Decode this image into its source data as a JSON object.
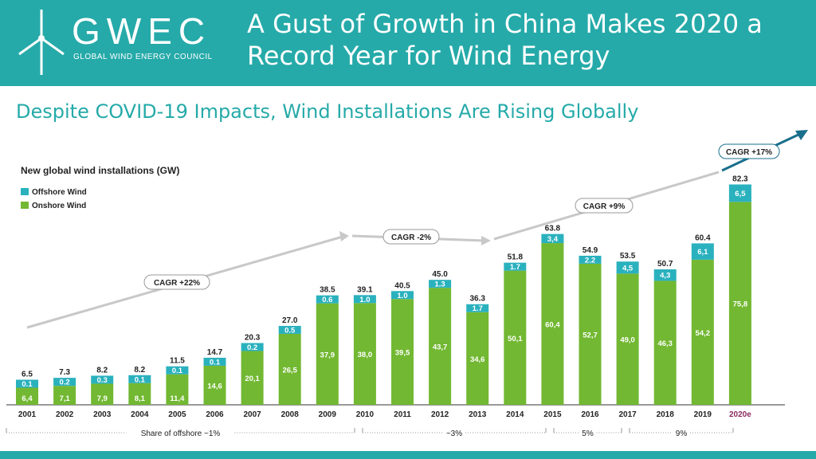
{
  "header": {
    "logo_text": "GWEC",
    "logo_subtitle": "GLOBAL WIND ENERGY COUNCIL",
    "title": "A Gust of Growth in China Makes 2020 a Record Year for Wind Energy",
    "bg_color": "#25aaa9",
    "logo_icon": "wind-turbine-icon"
  },
  "subtitle": "Despite COVID-19 Impacts, Wind Installations Are Rising Globally",
  "chart_data": {
    "type": "bar",
    "stacked": true,
    "title": "New global wind installations (GW)",
    "categories": [
      "2001",
      "2002",
      "2003",
      "2004",
      "2005",
      "2006",
      "2007",
      "2008",
      "2009",
      "2010",
      "2011",
      "2012",
      "2013",
      "2014",
      "2015",
      "2016",
      "2017",
      "2018",
      "2019",
      "2020e"
    ],
    "series": [
      {
        "name": "Onshore Wind",
        "color": "#72b832",
        "values": [
          6.4,
          7.1,
          7.9,
          8.1,
          11.4,
          14.6,
          20.1,
          26.5,
          37.9,
          38.0,
          39.5,
          43.7,
          34.6,
          50.1,
          60.4,
          52.7,
          49.0,
          46.3,
          54.2,
          75.8
        ],
        "labels": [
          "6,4",
          "7,1",
          "7,9",
          "8,1",
          "11,4",
          "14,6",
          "20,1",
          "26,5",
          "37,9",
          "38,0",
          "39,5",
          "43,7",
          "34,6",
          "50,1",
          "60,4",
          "52,7",
          "49,0",
          "46,3",
          "54,2",
          "75,8"
        ]
      },
      {
        "name": "Offshore Wind",
        "color": "#2ab1be",
        "values": [
          0.1,
          0.2,
          0.3,
          0.1,
          0.1,
          0.1,
          0.2,
          0.5,
          0.6,
          1.0,
          1.0,
          1.3,
          1.7,
          1.7,
          3.4,
          2.2,
          4.5,
          4.3,
          6.1,
          6.5
        ],
        "labels": [
          "0.1",
          "0.2",
          "0.3",
          "0.1",
          "0.1",
          "0.1",
          "0.2",
          "0.5",
          "0.6",
          "1.0",
          "1.0",
          "1.3",
          "1.7",
          "1.7",
          "3,4",
          "2.2",
          "4,5",
          "4,3",
          "6,1",
          "6,5"
        ]
      }
    ],
    "totals": [
      "6.5",
      "7.3",
      "8.2",
      "8.2",
      "11.5",
      "14.7",
      "20.3",
      "27.0",
      "38.5",
      "39.1",
      "40.5",
      "45.0",
      "36.3",
      "51.8",
      "63.8",
      "54.9",
      "53.5",
      "50.7",
      "60.4",
      "82.3"
    ],
    "highlight_category": "2020e",
    "highlight_color": "#8b2a5e",
    "annotations": [
      "CAGR +22%",
      "CAGR -2%",
      "CAGR +9%",
      "CAGR +17%"
    ],
    "share_labels": [
      "Share of offshore ~1%",
      "~3%",
      "5%",
      "9%"
    ],
    "legend_position": "top-left",
    "grid": false
  }
}
